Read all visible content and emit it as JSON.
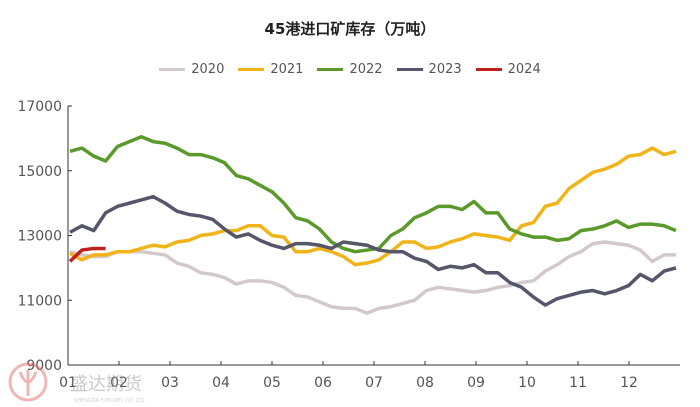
{
  "chart_data": {
    "type": "line",
    "title": "45港进口矿库存（万吨）",
    "x_ticks": [
      "01",
      "02",
      "03",
      "04",
      "05",
      "06",
      "07",
      "08",
      "09",
      "10",
      "11",
      "12"
    ],
    "ylim": [
      9000,
      17000
    ],
    "y_ticks": [
      9000,
      11000,
      13000,
      15000,
      17000
    ],
    "grid": false,
    "legend": "top",
    "series": [
      {
        "name": "2020",
        "color": "#d3c9cc",
        "values": [
          12500,
          12400,
          12350,
          12350,
          12500,
          12500,
          12500,
          12450,
          12400,
          12150,
          12050,
          11850,
          11800,
          11700,
          11500,
          11600,
          11600,
          11550,
          11400,
          11150,
          11100,
          10950,
          10800,
          10750,
          10750,
          10600,
          10750,
          10800,
          10900,
          11000,
          11300,
          11400,
          11350,
          11300,
          11250,
          11300,
          11400,
          11450,
          11550,
          11600,
          11900,
          12100,
          12350,
          12500,
          12750,
          12800,
          12750,
          12700,
          12550,
          12200,
          12400,
          12400
        ]
      },
      {
        "name": "2021",
        "color": "#f0b418",
        "values": [
          12450,
          12250,
          12400,
          12400,
          12500,
          12500,
          12600,
          12700,
          12650,
          12800,
          12850,
          13000,
          13050,
          13150,
          13150,
          13300,
          13300,
          13000,
          12950,
          12500,
          12500,
          12600,
          12500,
          12350,
          12100,
          12150,
          12250,
          12500,
          12800,
          12800,
          12600,
          12650,
          12800,
          12900,
          13050,
          13000,
          12950,
          12850,
          13300,
          13400,
          13900,
          14000,
          14450,
          14700,
          14950,
          15050,
          15200,
          15450,
          15500,
          15700,
          15500,
          15600
        ]
      },
      {
        "name": "2022",
        "color": "#5a9a2a",
        "values": [
          15600,
          15700,
          15450,
          15300,
          15750,
          15900,
          16050,
          15900,
          15850,
          15700,
          15500,
          15500,
          15400,
          15250,
          14850,
          14750,
          14550,
          14350,
          14000,
          13550,
          13450,
          13200,
          12800,
          12600,
          12500,
          12550,
          12600,
          13000,
          13200,
          13550,
          13700,
          13900,
          13900,
          13800,
          14050,
          13700,
          13700,
          13200,
          13050,
          12950,
          12950,
          12850,
          12900,
          13150,
          13200,
          13300,
          13450,
          13250,
          13350,
          13350,
          13300,
          13150
        ]
      },
      {
        "name": "2023",
        "color": "#55566a",
        "values": [
          13100,
          13300,
          13150,
          13700,
          13900,
          14000,
          14100,
          14200,
          14000,
          13750,
          13650,
          13600,
          13500,
          13200,
          12950,
          13050,
          12850,
          12700,
          12600,
          12750,
          12750,
          12700,
          12600,
          12800,
          12750,
          12700,
          12550,
          12500,
          12500,
          12300,
          12200,
          11950,
          12050,
          12000,
          12100,
          11850,
          11850,
          11550,
          11400,
          11100,
          10850,
          11050,
          11150,
          11250,
          11300,
          11200,
          11300,
          11450,
          11800,
          11600,
          11900,
          12000
        ]
      },
      {
        "name": "2024",
        "color": "#c0201c",
        "values": [
          12200,
          12550,
          12600,
          12600
        ]
      }
    ]
  },
  "watermark": {
    "text": "盛达期货",
    "subtext": "SHENGDA FUTURES CO.,LTD."
  }
}
